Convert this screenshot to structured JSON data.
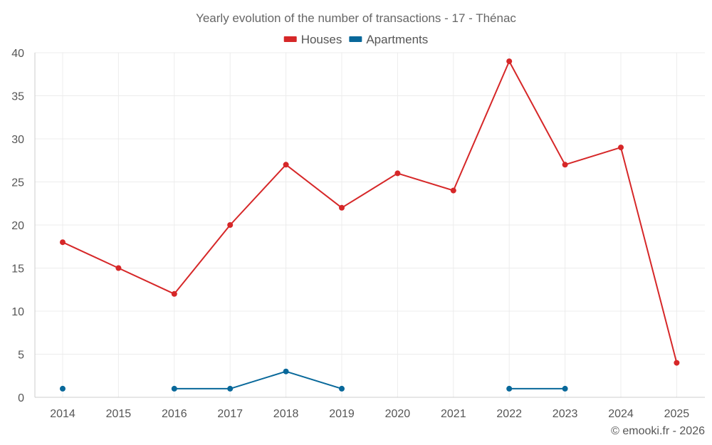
{
  "chart_data": {
    "type": "line",
    "title": "Yearly evolution of the number of transactions - 17 - Thénac",
    "xlabel": "",
    "ylabel": "",
    "categories": [
      "2014",
      "2015",
      "2016",
      "2017",
      "2018",
      "2019",
      "2020",
      "2021",
      "2022",
      "2023",
      "2024",
      "2025"
    ],
    "ylim": [
      0,
      40
    ],
    "yticks": [
      0,
      5,
      10,
      15,
      20,
      25,
      30,
      35,
      40
    ],
    "grid": true,
    "legend_position": "top-center",
    "series": [
      {
        "name": "Houses",
        "color": "#d62728",
        "values": [
          18,
          15,
          12,
          20,
          27,
          22,
          26,
          24,
          39,
          27,
          29,
          4
        ]
      },
      {
        "name": "Apartments",
        "color": "#08689a",
        "values": [
          1,
          null,
          1,
          1,
          3,
          1,
          null,
          null,
          1,
          1,
          null,
          null
        ]
      }
    ]
  },
  "credit": "© emooki.fr - 2026"
}
